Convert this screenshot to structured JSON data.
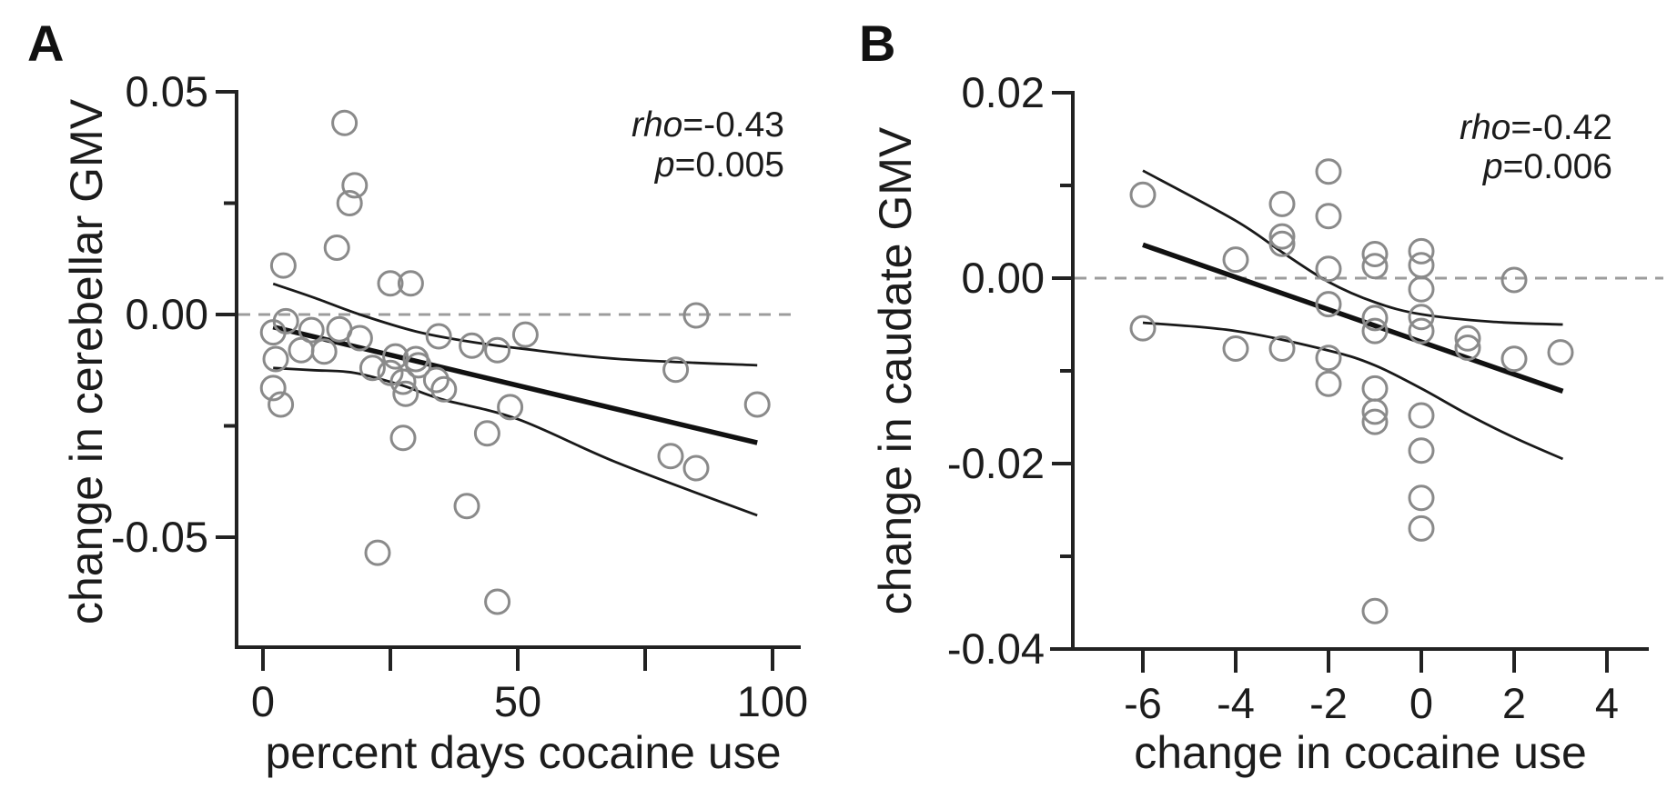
{
  "figure": {
    "background": "#ffffff",
    "ink_color": "#1c1c1c",
    "axis_color": "#222222",
    "point_stroke_color": "#8a8a8a",
    "zero_line_color": "#9c9c9c",
    "fit_line_color": "#111111"
  },
  "chart_data": [
    {
      "type": "scatter",
      "panel_label": "A",
      "xlabel": "percent days cocaine use",
      "ylabel": "change in cerebellar GMV",
      "annotation": {
        "rho_label": "rho",
        "rho_value": "=-0.43",
        "p_label": "p",
        "p_value": "=0.005"
      },
      "xlim": [
        -5,
        106
      ],
      "ylim": [
        -0.075,
        0.05
      ],
      "grid": false,
      "legend": null,
      "xticks": [
        {
          "v": 0,
          "label": "0"
        },
        {
          "v": 25
        },
        {
          "v": 50,
          "label": "50"
        },
        {
          "v": 75
        },
        {
          "v": 100,
          "label": "100"
        }
      ],
      "yticks": [
        {
          "v": 0.05,
          "label": "0.05"
        },
        {
          "v": 0.025
        },
        {
          "v": 0,
          "label": "0.00"
        },
        {
          "v": -0.025
        },
        {
          "v": -0.05,
          "label": "-0.05"
        }
      ],
      "zero_line_y": 0,
      "points": [
        [
          16,
          0.043
        ],
        [
          18,
          0.029
        ],
        [
          17,
          0.025
        ],
        [
          14.5,
          0.015
        ],
        [
          4,
          0.011
        ],
        [
          25,
          0.007
        ],
        [
          29,
          0.007
        ],
        [
          4.5,
          -0.0015
        ],
        [
          2,
          -0.004
        ],
        [
          9.5,
          -0.0035
        ],
        [
          15,
          -0.0033
        ],
        [
          19,
          -0.0053
        ],
        [
          34.5,
          -0.0049
        ],
        [
          41,
          -0.007
        ],
        [
          46,
          -0.008
        ],
        [
          51.5,
          -0.0045
        ],
        [
          85,
          -0.0002
        ],
        [
          2.5,
          -0.01
        ],
        [
          7.5,
          -0.008
        ],
        [
          12,
          -0.0083
        ],
        [
          26,
          -0.0094
        ],
        [
          30,
          -0.01
        ],
        [
          30.5,
          -0.0114
        ],
        [
          21.5,
          -0.012
        ],
        [
          25,
          -0.0131
        ],
        [
          27.5,
          -0.0151
        ],
        [
          34,
          -0.0147
        ],
        [
          35.5,
          -0.0168
        ],
        [
          28,
          -0.0178
        ],
        [
          2,
          -0.0165
        ],
        [
          3.5,
          -0.0202
        ],
        [
          48.5,
          -0.0208
        ],
        [
          44,
          -0.0267
        ],
        [
          27.5,
          -0.0277
        ],
        [
          81,
          -0.0124
        ],
        [
          97,
          -0.0202
        ],
        [
          80,
          -0.0318
        ],
        [
          85,
          -0.0345
        ],
        [
          40,
          -0.043
        ],
        [
          22.5,
          -0.0535
        ],
        [
          46,
          -0.0645
        ]
      ],
      "fit_line": [
        [
          2,
          -0.0028
        ],
        [
          97,
          -0.0288
        ]
      ],
      "ci_upper": [
        [
          2,
          0.0069
        ],
        [
          10,
          0.0038
        ],
        [
          19,
          0.0
        ],
        [
          30,
          -0.0038
        ],
        [
          40,
          -0.006
        ],
        [
          51,
          -0.0077
        ],
        [
          70,
          -0.01
        ],
        [
          97,
          -0.0114
        ]
      ],
      "ci_lower": [
        [
          2,
          -0.012
        ],
        [
          10,
          -0.0125
        ],
        [
          18,
          -0.0131
        ],
        [
          27,
          -0.0158
        ],
        [
          35,
          -0.019
        ],
        [
          50,
          -0.0235
        ],
        [
          70,
          -0.0335
        ],
        [
          97,
          -0.0451
        ]
      ]
    },
    {
      "type": "scatter",
      "panel_label": "B",
      "xlabel": "change in cocaine use",
      "ylabel": "change in caudate GMV",
      "annotation": {
        "rho_label": "rho",
        "rho_value": "=-0.42",
        "p_label": "p",
        "p_value": "=0.006"
      },
      "xlim": [
        -7.5,
        4.9
      ],
      "ylim": [
        -0.04,
        0.02
      ],
      "grid": false,
      "legend": null,
      "xticks": [
        {
          "v": -6,
          "label": "-6"
        },
        {
          "v": -4,
          "label": "-4"
        },
        {
          "v": -2,
          "label": "-2"
        },
        {
          "v": 0,
          "label": "0"
        },
        {
          "v": 2,
          "label": "2"
        },
        {
          "v": 4,
          "label": "4"
        }
      ],
      "yticks": [
        {
          "v": 0.02,
          "label": "0.02"
        },
        {
          "v": 0.01
        },
        {
          "v": 0,
          "label": "0.00"
        },
        {
          "v": -0.01
        },
        {
          "v": -0.02,
          "label": "-0.02"
        },
        {
          "v": -0.03
        },
        {
          "v": -0.04,
          "label": "-0.04"
        }
      ],
      "zero_line_y": 0,
      "points": [
        [
          -6,
          0.009
        ],
        [
          -6,
          -0.0054
        ],
        [
          -4,
          0.002
        ],
        [
          -4,
          -0.0076
        ],
        [
          -3,
          0.008
        ],
        [
          -3,
          0.0045
        ],
        [
          -3,
          0.0037
        ],
        [
          -3,
          -0.0076
        ],
        [
          -2,
          0.0115
        ],
        [
          -2,
          0.0067
        ],
        [
          -2,
          0.001
        ],
        [
          -2,
          -0.0028
        ],
        [
          -2,
          -0.0086
        ],
        [
          -2,
          -0.0114
        ],
        [
          -1,
          0.0026
        ],
        [
          -1,
          0.0013
        ],
        [
          -1,
          -0.0043
        ],
        [
          -1,
          -0.0057
        ],
        [
          -1,
          -0.0119
        ],
        [
          -1,
          -0.0144
        ],
        [
          -1,
          -0.0155
        ],
        [
          -1,
          -0.0359
        ],
        [
          0,
          0.0029
        ],
        [
          0,
          0.0014
        ],
        [
          0,
          -0.0012
        ],
        [
          0,
          -0.0042
        ],
        [
          0,
          -0.0057
        ],
        [
          0,
          -0.0148
        ],
        [
          0,
          -0.0186
        ],
        [
          0,
          -0.0237
        ],
        [
          0,
          -0.027
        ],
        [
          1,
          -0.0065
        ],
        [
          1,
          -0.0075
        ],
        [
          2,
          -0.0002
        ],
        [
          2,
          -0.0087
        ],
        [
          3,
          -0.008
        ]
      ],
      "fit_line": [
        [
          -6,
          0.0036
        ],
        [
          3.05,
          -0.0122
        ]
      ],
      "ci_upper": [
        [
          -6,
          0.0116
        ],
        [
          -4,
          0.0062
        ],
        [
          -3,
          0.0028
        ],
        [
          -2,
          -0.0004
        ],
        [
          -1,
          -0.0026
        ],
        [
          0,
          -0.0039
        ],
        [
          1.5,
          -0.0047
        ],
        [
          3.05,
          -0.005
        ]
      ],
      "ci_lower": [
        [
          -6,
          -0.0048
        ],
        [
          -4,
          -0.0057
        ],
        [
          -2,
          -0.0078
        ],
        [
          -1,
          -0.0094
        ],
        [
          0,
          -0.0119
        ],
        [
          1,
          -0.0147
        ],
        [
          2,
          -0.0172
        ],
        [
          3.05,
          -0.0195
        ]
      ]
    }
  ]
}
